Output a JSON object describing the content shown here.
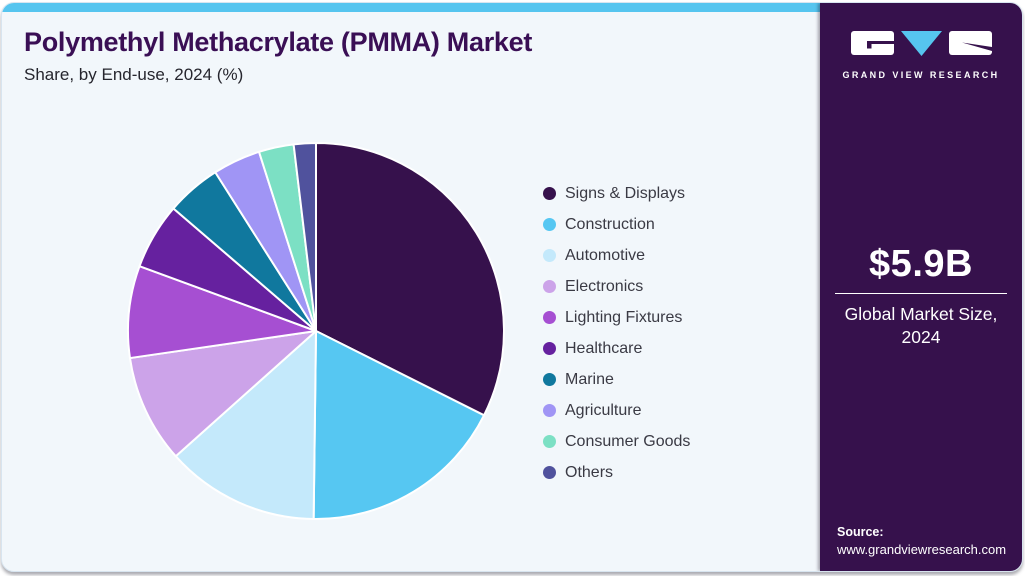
{
  "page": {
    "title": "Polymethyl Methacrylate (PMMA) Market",
    "subtitle": "Share, by End-use, 2024 (%)"
  },
  "brand": {
    "name": "GRAND VIEW RESEARCH",
    "sidebar_bg": "#36114C",
    "accent_blue": "#56C5EF",
    "logo_icon": "gvr-logo"
  },
  "market_size": {
    "value": "$5.9B",
    "label_line1": "Global Market Size,",
    "label_line2": "2024"
  },
  "source": {
    "label": "Source:",
    "url": "www.grandviewresearch.com"
  },
  "chart_data": {
    "type": "pie",
    "title": "Polymethyl Methacrylate (PMMA) Market Share, by End-use, 2024 (%)",
    "unit": "%",
    "start_angle_deg": 0,
    "direction": "clockwise",
    "legend_position": "right",
    "data_labels_shown": false,
    "categories": [
      "Signs & Displays",
      "Construction",
      "Automotive",
      "Electronics",
      "Lighting Fixtures",
      "Healthcare",
      "Marine",
      "Agriculture",
      "Consumer Goods",
      "Others"
    ],
    "values": [
      32.4,
      17.8,
      13.2,
      9.3,
      7.9,
      5.7,
      4.7,
      4.1,
      3.0,
      1.9
    ],
    "colors": [
      "#36114C",
      "#56C7F2",
      "#C4E9FB",
      "#CCA3E9",
      "#A64FD2",
      "#66219F",
      "#10789E",
      "#A095F5",
      "#7CE0C4",
      "#50529D"
    ],
    "gap_color": "#FFFFFF"
  }
}
